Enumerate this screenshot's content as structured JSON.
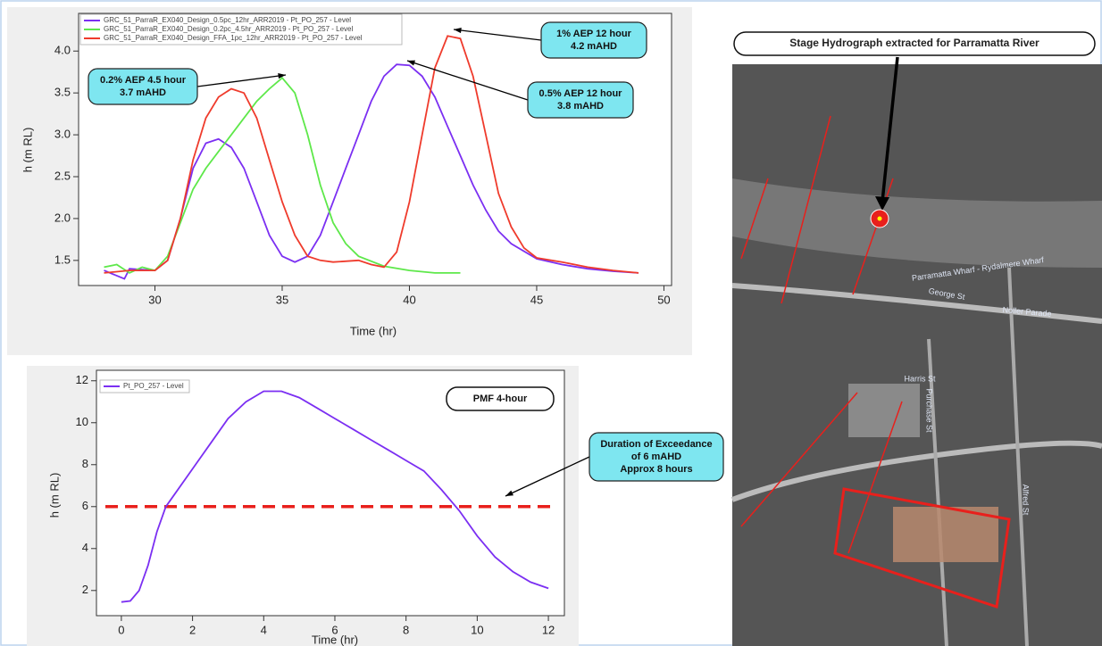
{
  "chart_data": [
    {
      "type": "line",
      "x_label": "Time (hr)",
      "y_label": "h (m RL)",
      "xlim": [
        27,
        50.3
      ],
      "ylim": [
        1.2,
        4.45
      ],
      "xticks": [
        30,
        35,
        40,
        45,
        50
      ],
      "yticks": [
        1.5,
        {
          "value": 2,
          "label": "2.0"
        },
        2.5,
        {
          "value": 3,
          "label": "3.0"
        },
        3.5,
        {
          "value": 4,
          "label": "4.0"
        }
      ],
      "series": [
        {
          "name": "GRC_51_ParraR_EX040_Design_0.5pc_12hr_ARR2019 - Pt_PO_257 - Level",
          "color": "#7b2ff2",
          "x": [
            28,
            28.8,
            29,
            30,
            30.5,
            31,
            31.5,
            32,
            32.5,
            33,
            33.5,
            34,
            34.5,
            35,
            35.5,
            36,
            36.5,
            37,
            37.5,
            38,
            38.5,
            39,
            39.5,
            40,
            40.5,
            41,
            41.5,
            42,
            42.5,
            43,
            43.5,
            44,
            45,
            46,
            47,
            48,
            49
          ],
          "values": [
            1.38,
            1.28,
            1.4,
            1.38,
            1.5,
            2.0,
            2.6,
            2.9,
            2.95,
            2.85,
            2.6,
            2.2,
            1.8,
            1.55,
            1.48,
            1.55,
            1.8,
            2.2,
            2.6,
            3.0,
            3.4,
            3.7,
            3.84,
            3.83,
            3.7,
            3.45,
            3.1,
            2.75,
            2.4,
            2.1,
            1.85,
            1.7,
            1.52,
            1.45,
            1.4,
            1.37,
            1.35
          ]
        },
        {
          "name": "GRC_51_ParraR_EX040_Design_0.2pc_4.5hr_ARR2019 - Pt_PO_257 - Level",
          "color": "#5ee84a",
          "x": [
            28,
            28.5,
            29,
            29.5,
            30,
            30.5,
            31,
            31.5,
            32,
            32.5,
            33,
            33.5,
            34,
            34.5,
            35,
            35.5,
            36,
            36.5,
            37,
            37.5,
            38,
            39,
            40,
            41,
            42
          ],
          "values": [
            1.42,
            1.45,
            1.35,
            1.42,
            1.38,
            1.55,
            1.95,
            2.35,
            2.6,
            2.8,
            3.0,
            3.2,
            3.4,
            3.55,
            3.68,
            3.5,
            3.0,
            2.4,
            1.95,
            1.7,
            1.55,
            1.43,
            1.38,
            1.35,
            1.35
          ]
        },
        {
          "name": "GRC_51_ParraR_EX040_Design_FFA_1pc_12hr_ARR2019 - Pt_PO_257 - Level",
          "color": "#ef3b2c",
          "x": [
            28,
            29,
            30,
            30.5,
            31,
            31.5,
            32,
            32.5,
            33,
            33.5,
            34,
            34.5,
            35,
            35.5,
            36,
            36.5,
            37,
            38,
            38.5,
            39,
            39.5,
            40,
            40.5,
            41,
            41.5,
            42,
            42.5,
            43,
            43.5,
            44,
            44.5,
            45,
            46,
            47,
            48,
            49
          ],
          "values": [
            1.35,
            1.38,
            1.38,
            1.5,
            2.0,
            2.7,
            3.2,
            3.45,
            3.55,
            3.5,
            3.2,
            2.7,
            2.2,
            1.8,
            1.55,
            1.5,
            1.48,
            1.5,
            1.45,
            1.42,
            1.6,
            2.2,
            3.0,
            3.8,
            4.18,
            4.15,
            3.7,
            3.0,
            2.3,
            1.9,
            1.65,
            1.53,
            1.48,
            1.42,
            1.38,
            1.35
          ]
        }
      ],
      "annotations": [
        [
          "1% AEP 12 hour",
          "4.2 mAHD"
        ],
        [
          "0.2% AEP 4.5 hour",
          "3.7 mAHD"
        ],
        [
          "0.5% AEP 12 hour",
          "3.8 mAHD"
        ]
      ]
    },
    {
      "type": "line",
      "x_label": "Time (hr)",
      "y_label": "h (m RL)",
      "xlim": [
        -0.7,
        12.45
      ],
      "ylim": [
        0.8,
        12.5
      ],
      "xticks": [
        0,
        2,
        4,
        6,
        8,
        10,
        12
      ],
      "yticks": [
        2,
        4,
        6,
        8,
        10,
        12
      ],
      "series": [
        {
          "name": "Pt_PO_257 - Level",
          "color": "#7b2ff2",
          "x": [
            0,
            0.25,
            0.5,
            0.75,
            1,
            1.25,
            1.5,
            2,
            2.5,
            3,
            3.5,
            4,
            4.5,
            5,
            5.5,
            6,
            6.5,
            7,
            7.5,
            8,
            8.5,
            9,
            9.5,
            10,
            10.5,
            11,
            11.5,
            12
          ],
          "values": [
            1.45,
            1.5,
            2.0,
            3.2,
            4.8,
            6.0,
            6.6,
            7.8,
            9.0,
            10.2,
            11.0,
            11.5,
            11.5,
            11.2,
            10.7,
            10.2,
            9.7,
            9.2,
            8.7,
            8.2,
            7.7,
            6.8,
            5.8,
            4.6,
            3.6,
            2.9,
            2.4,
            2.1
          ]
        }
      ],
      "threshold": {
        "value": 6,
        "color": "#e8201c"
      },
      "label_box": "PMF 4-hour",
      "annotations": [
        [
          "Duration of Exceedance",
          "of 6 mAHD",
          "Approx 8 hours"
        ]
      ]
    }
  ],
  "map": {
    "title": "Stage Hydrograph extracted for Parramatta River",
    "labels": [
      "Parramatta Wharf - Rydalmere Wharf",
      "George St",
      "Harris St",
      "Purchase St",
      "Alfred St",
      "Noller Parade"
    ]
  }
}
